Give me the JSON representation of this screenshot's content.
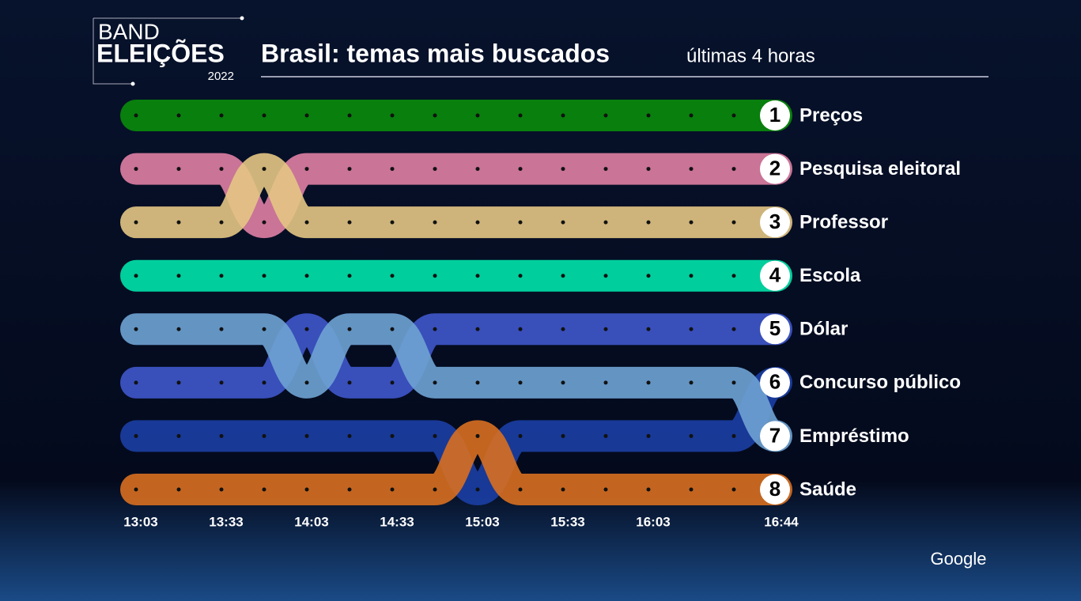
{
  "logo": {
    "line1": "BAND",
    "line2": "ELEIÇÕES",
    "year": "2022"
  },
  "brand": "Google",
  "chart_data": {
    "type": "bump",
    "title": "Brasil: temas mais buscados",
    "subtitle": "últimas 4 horas",
    "categories": [
      "13:03",
      null,
      "13:33",
      null,
      "14:03",
      null,
      "14:33",
      null,
      "15:03",
      null,
      "15:33",
      null,
      "16:03",
      null,
      null,
      "16:44"
    ],
    "ylim": [
      1,
      8
    ],
    "series": [
      {
        "name": "Preços",
        "color": "#0a8c0a",
        "values": [
          1,
          1,
          1,
          1,
          1,
          1,
          1,
          1,
          1,
          1,
          1,
          1,
          1,
          1,
          1,
          1
        ]
      },
      {
        "name": "Pesquisa eleitoral",
        "color": "#e07fa4",
        "values": [
          2,
          2,
          2,
          3,
          2,
          2,
          2,
          2,
          2,
          2,
          2,
          2,
          2,
          2,
          2,
          2
        ]
      },
      {
        "name": "Professor",
        "color": "#e4c684",
        "values": [
          3,
          3,
          3,
          2,
          3,
          3,
          3,
          3,
          3,
          3,
          3,
          3,
          3,
          3,
          3,
          3
        ]
      },
      {
        "name": "Escola",
        "color": "#00e3aa",
        "values": [
          4,
          4,
          4,
          4,
          4,
          4,
          4,
          4,
          4,
          4,
          4,
          4,
          4,
          4,
          4,
          4
        ]
      },
      {
        "name": "Dólar",
        "color": "#3f57cb",
        "values": [
          6,
          6,
          6,
          6,
          5,
          6,
          6,
          5,
          5,
          5,
          5,
          5,
          5,
          5,
          5,
          5
        ]
      },
      {
        "name": "Concurso público",
        "color": "#1b3ea4",
        "values": [
          7,
          7,
          7,
          7,
          7,
          7,
          7,
          7,
          8,
          7,
          7,
          7,
          7,
          7,
          7,
          6
        ]
      },
      {
        "name": "Empréstimo",
        "color": "#6fa3d4",
        "values": [
          5,
          5,
          5,
          5,
          6,
          5,
          5,
          6,
          6,
          6,
          6,
          6,
          6,
          6,
          6,
          7
        ]
      },
      {
        "name": "Saúde",
        "color": "#d86f20",
        "values": [
          8,
          8,
          8,
          8,
          8,
          8,
          8,
          8,
          7,
          8,
          8,
          8,
          8,
          8,
          8,
          8
        ]
      }
    ]
  }
}
